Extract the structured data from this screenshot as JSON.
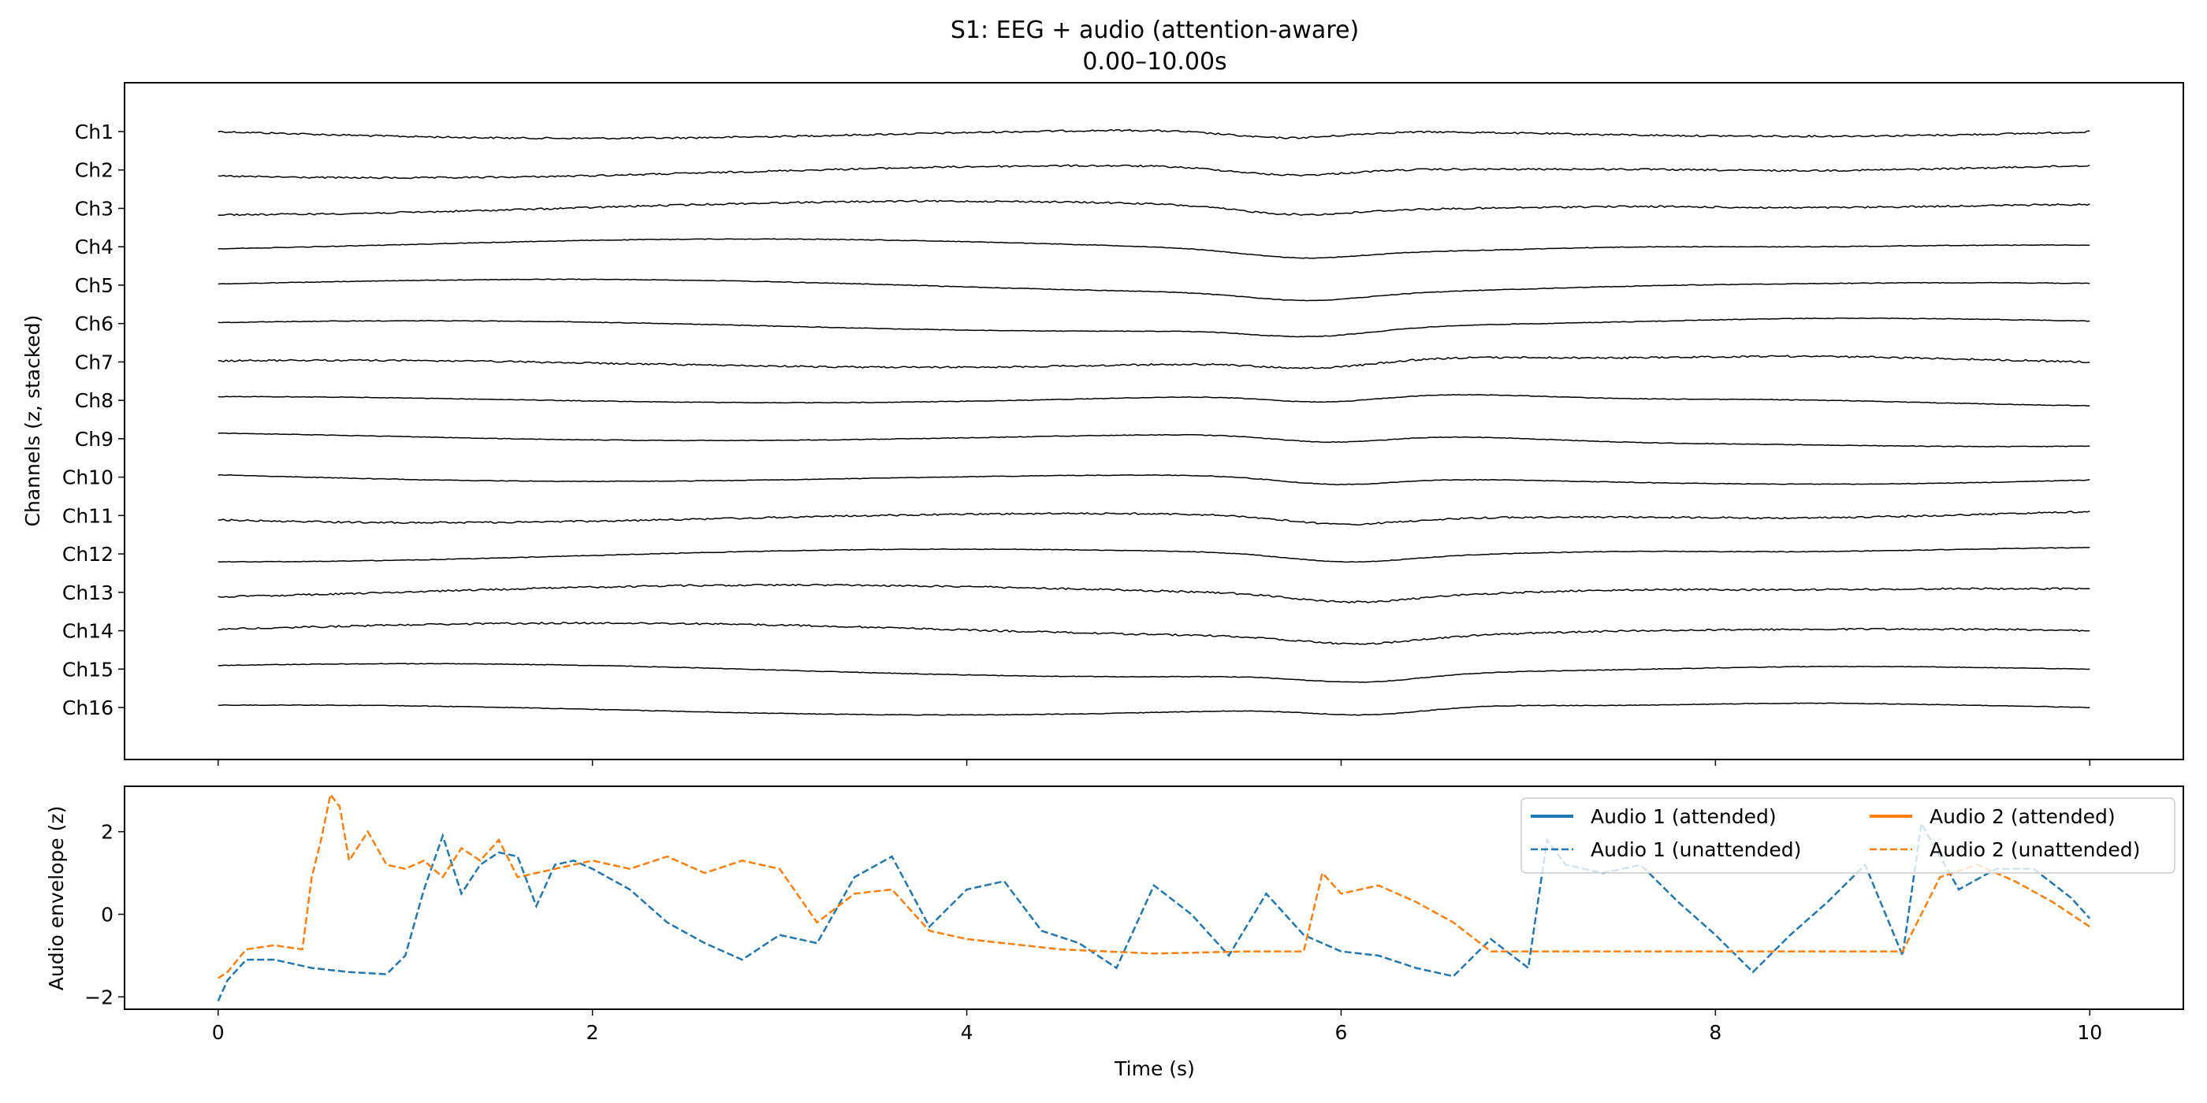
{
  "chart_data": [
    {
      "type": "line",
      "title": "S1: EEG + audio (attention-aware)",
      "subtitle": "0.00–10.00s",
      "xlabel": "",
      "ylabel": "Channels (z, stacked)",
      "xlim": [
        -0.5,
        10.5
      ],
      "x_ticks": [
        0,
        2,
        4,
        6,
        8,
        10
      ],
      "channels": [
        "Ch1",
        "Ch2",
        "Ch3",
        "Ch4",
        "Ch5",
        "Ch6",
        "Ch7",
        "Ch8",
        "Ch9",
        "Ch10",
        "Ch11",
        "Ch12",
        "Ch13",
        "Ch14",
        "Ch15",
        "Ch16"
      ],
      "line_color": "#000000",
      "grid": false,
      "legend": "none"
    },
    {
      "type": "line",
      "xlabel": "Time (s)",
      "ylabel": "Audio envelope (z)",
      "xlim": [
        -0.5,
        10.5
      ],
      "ylim": [
        -2.3,
        3.1
      ],
      "x_ticks": [
        0,
        2,
        4,
        6,
        8,
        10
      ],
      "x_tick_labels": [
        "0",
        "2",
        "4",
        "6",
        "8",
        "10"
      ],
      "y_ticks": [
        -2,
        0,
        2
      ],
      "y_tick_labels": [
        "−2",
        "0",
        "2"
      ],
      "grid": false,
      "legend": "upper right, 2 columns",
      "series": [
        {
          "name": "Audio 1 (attended)",
          "color": "#1f77b4",
          "style": "solid",
          "x": [],
          "values": []
        },
        {
          "name": "Audio 1 (unattended)",
          "color": "#1f77b4",
          "style": "dashed",
          "x": [
            0,
            0.05,
            0.15,
            0.3,
            0.5,
            0.7,
            0.9,
            1.0,
            1.1,
            1.2,
            1.3,
            1.4,
            1.5,
            1.6,
            1.7,
            1.8,
            1.9,
            2.0,
            2.2,
            2.4,
            2.6,
            2.8,
            3.0,
            3.2,
            3.4,
            3.6,
            3.8,
            4.0,
            4.2,
            4.4,
            4.6,
            4.8,
            5.0,
            5.2,
            5.4,
            5.6,
            5.8,
            6.0,
            6.2,
            6.4,
            6.6,
            6.8,
            7.0,
            7.1,
            7.2,
            7.4,
            7.6,
            7.8,
            8.0,
            8.2,
            8.4,
            8.6,
            8.8,
            9.0,
            9.1,
            9.3,
            9.5,
            9.7,
            9.9,
            10.0
          ],
          "values": [
            -2.1,
            -1.6,
            -1.1,
            -1.1,
            -1.3,
            -1.4,
            -1.45,
            -1.0,
            0.6,
            1.9,
            0.5,
            1.2,
            1.5,
            1.4,
            0.2,
            1.2,
            1.3,
            1.1,
            0.6,
            -0.2,
            -0.7,
            -1.1,
            -0.5,
            -0.7,
            0.9,
            1.4,
            -0.3,
            0.6,
            0.8,
            -0.4,
            -0.7,
            -1.3,
            0.7,
            0.0,
            -1.0,
            0.5,
            -0.5,
            -0.9,
            -1.0,
            -1.3,
            -1.5,
            -0.6,
            -1.3,
            1.8,
            1.2,
            1.0,
            1.2,
            0.3,
            -0.5,
            -1.4,
            -0.5,
            0.3,
            1.2,
            -1.0,
            2.2,
            0.6,
            1.1,
            1.1,
            0.4,
            -0.1
          ]
        },
        {
          "name": "Audio 2 (attended)",
          "color": "#ff7f0e",
          "style": "solid",
          "x": [],
          "values": []
        },
        {
          "name": "Audio 2 (unattended)",
          "color": "#ff7f0e",
          "style": "dashed",
          "x": [
            0,
            0.05,
            0.15,
            0.3,
            0.45,
            0.5,
            0.55,
            0.6,
            0.65,
            0.7,
            0.8,
            0.9,
            1.0,
            1.1,
            1.2,
            1.3,
            1.4,
            1.5,
            1.6,
            1.8,
            2.0,
            2.2,
            2.4,
            2.6,
            2.8,
            3.0,
            3.2,
            3.4,
            3.6,
            3.8,
            4.0,
            4.5,
            5.0,
            5.5,
            5.8,
            5.9,
            6.0,
            6.2,
            6.4,
            6.6,
            6.8,
            7.0,
            7.5,
            8.0,
            8.5,
            9.0,
            9.2,
            9.4,
            9.6,
            9.8,
            10.0
          ],
          "values": [
            -1.55,
            -1.4,
            -0.85,
            -0.75,
            -0.85,
            0.9,
            1.8,
            2.9,
            2.6,
            1.3,
            2.0,
            1.2,
            1.1,
            1.3,
            0.9,
            1.6,
            1.3,
            1.8,
            0.9,
            1.1,
            1.3,
            1.1,
            1.4,
            1.0,
            1.3,
            1.1,
            -0.2,
            0.5,
            0.6,
            -0.4,
            -0.6,
            -0.85,
            -0.95,
            -0.9,
            -0.9,
            1.0,
            0.5,
            0.7,
            0.3,
            -0.2,
            -0.9,
            -0.9,
            -0.9,
            -0.9,
            -0.9,
            -0.9,
            0.9,
            1.2,
            0.8,
            0.3,
            -0.3
          ]
        }
      ]
    }
  ]
}
